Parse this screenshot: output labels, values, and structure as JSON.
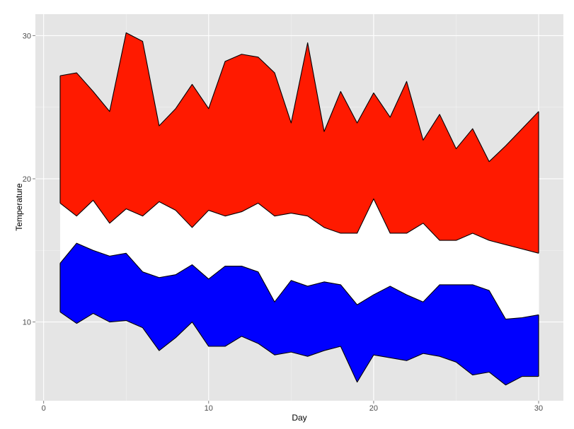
{
  "chart_data": {
    "type": "area",
    "title": "",
    "xlabel": "Day",
    "ylabel": "Temperature",
    "xlim": [
      -0.5,
      31.5
    ],
    "ylim": [
      4.5,
      31.5
    ],
    "x_ticks": [
      0,
      10,
      20,
      30
    ],
    "y_ticks": [
      10,
      20,
      30
    ],
    "grid": true,
    "panel_background": "#e5e5e5",
    "grid_color": "#ffffff",
    "x": [
      1,
      2,
      3,
      4,
      5,
      6,
      7,
      8,
      9,
      10,
      11,
      12,
      13,
      14,
      15,
      16,
      17,
      18,
      19,
      20,
      21,
      22,
      23,
      24,
      25,
      26,
      27,
      28,
      29,
      30
    ],
    "series": [
      {
        "fill": "#ff1a00",
        "upper": [
          27.2,
          27.4,
          26.1,
          24.7,
          30.2,
          29.6,
          23.7,
          24.9,
          26.6,
          24.9,
          28.2,
          28.7,
          28.5,
          27.4,
          23.9,
          29.5,
          23.3,
          26.1,
          23.9,
          26.0,
          24.3,
          26.8,
          22.7,
          24.5,
          22.1,
          23.5,
          21.2,
          22.3,
          23.5,
          24.7
        ],
        "lower": [
          18.3,
          17.4,
          18.5,
          16.9,
          17.9,
          17.4,
          18.4,
          17.8,
          16.6,
          17.8,
          17.4,
          17.7,
          18.3,
          17.4,
          17.6,
          17.4,
          16.6,
          16.2,
          16.2,
          18.6,
          16.2,
          16.2,
          16.9,
          15.7,
          15.7,
          16.2,
          15.7,
          15.4,
          15.1,
          14.8
        ]
      },
      {
        "fill": "#ffffff",
        "upper": [
          18.3,
          17.4,
          18.5,
          16.9,
          17.9,
          17.4,
          18.4,
          17.8,
          16.6,
          17.8,
          17.4,
          17.7,
          18.3,
          17.4,
          17.6,
          17.4,
          16.6,
          16.2,
          16.2,
          18.6,
          16.2,
          16.2,
          16.9,
          15.7,
          15.7,
          16.2,
          15.7,
          15.4,
          15.1,
          14.8
        ],
        "lower": [
          14.1,
          15.5,
          15.0,
          14.6,
          14.8,
          13.5,
          13.1,
          13.3,
          14.0,
          13.0,
          13.9,
          13.9,
          13.5,
          11.4,
          12.9,
          12.5,
          12.8,
          12.6,
          11.2,
          11.9,
          12.5,
          11.9,
          11.4,
          12.6,
          12.6,
          12.6,
          12.2,
          10.2,
          10.3,
          10.5
        ]
      },
      {
        "fill": "#0000ff",
        "upper": [
          14.1,
          15.5,
          15.0,
          14.6,
          14.8,
          13.5,
          13.1,
          13.3,
          14.0,
          13.0,
          13.9,
          13.9,
          13.5,
          11.4,
          12.9,
          12.5,
          12.8,
          12.6,
          11.2,
          11.9,
          12.5,
          11.9,
          11.4,
          12.6,
          12.6,
          12.6,
          12.2,
          10.2,
          10.3,
          10.5
        ],
        "lower": [
          10.7,
          9.9,
          10.6,
          10.0,
          10.1,
          9.6,
          8.0,
          8.9,
          10.0,
          8.3,
          8.3,
          9.0,
          8.5,
          7.7,
          7.9,
          7.6,
          8.0,
          8.3,
          5.8,
          7.7,
          7.5,
          7.3,
          7.8,
          7.6,
          7.2,
          6.3,
          6.5,
          5.6,
          6.2,
          6.2
        ]
      }
    ]
  }
}
